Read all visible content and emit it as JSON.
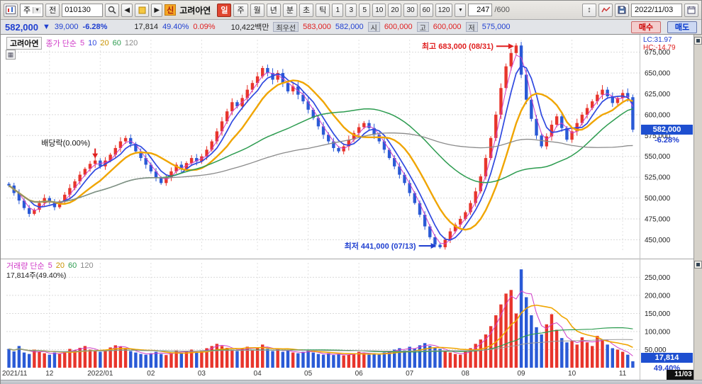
{
  "icons": {
    "dropdown": "▼",
    "prev": "◀",
    "next": "▶",
    "updown": "↕",
    "grid": "▦"
  },
  "toolbar": {
    "chart_type": "주",
    "jeon_label": "전",
    "code": "010130",
    "new_badge": "신",
    "stock_name": "고려아연",
    "period_active": "일",
    "periods": [
      "주",
      "월",
      "년",
      "분",
      "초",
      "틱"
    ],
    "intervals": [
      "1",
      "3",
      "5",
      "10",
      "20",
      "30",
      "60",
      "120"
    ],
    "bar_count": "247",
    "bar_max": "/600",
    "date": "2022/11/03"
  },
  "quote": {
    "price": "582,000",
    "change_arrow": "▼",
    "change": "39,000",
    "change_pct": "-6.28%",
    "volume": "17,814",
    "volume_ratio": "49.40%",
    "turnover": "0.09%",
    "value": "10,422백만",
    "best_label": "최우선",
    "best_ask": "583,000",
    "best_bid": "582,000",
    "open_label": "시",
    "open": "600,000",
    "high_label": "고",
    "high": "600,000",
    "low_label": "저",
    "low": "575,000",
    "buy_label": "매수",
    "sell_label": "매도"
  },
  "price_pane": {
    "name": "고려아연",
    "legend_prefix": "종가 단순",
    "ma_labels": [
      "5",
      "10",
      "20",
      "60",
      "120"
    ],
    "lc": "LC:31.97",
    "hc": "HC:-14.79",
    "current_price": "582,000",
    "current_pct": "-6.28%"
  },
  "volume_pane": {
    "legend_prefix": "거래량 단순",
    "ma_labels": [
      "5",
      "20",
      "60",
      "120"
    ],
    "current_text": "17,814주(49.40%)",
    "current_vol": "17,814",
    "current_pct": "49.40%"
  },
  "colors": {
    "up": "#e8352c",
    "down": "#2a5ad6",
    "red_text": "#e02020",
    "blue_text": "#1f3fd0"
  },
  "chart_data": {
    "type": "candlestick+volume",
    "title": "고려아연(010130) 일봉차트",
    "periodicity": "일",
    "current_date_label": "11/03",
    "price_range": [
      435000,
      690000
    ],
    "volume_range": [
      0,
      290000
    ],
    "price_axis_ticks": [
      450000,
      475000,
      500000,
      525000,
      550000,
      575000,
      600000,
      625000,
      650000,
      675000
    ],
    "volume_axis_ticks": [
      50000,
      100000,
      150000,
      200000,
      250000
    ],
    "months": [
      {
        "i": 0,
        "label": "2021/11"
      },
      {
        "i": 8,
        "label": "12"
      },
      {
        "i": 18,
        "label": "2022/01"
      },
      {
        "i": 28,
        "label": "02"
      },
      {
        "i": 38,
        "label": "03"
      },
      {
        "i": 49,
        "label": "04"
      },
      {
        "i": 59,
        "label": "05"
      },
      {
        "i": 69,
        "label": "06"
      },
      {
        "i": 79,
        "label": "07"
      },
      {
        "i": 90,
        "label": "08"
      },
      {
        "i": 101,
        "label": "09"
      },
      {
        "i": 111,
        "label": "10"
      },
      {
        "i": 121,
        "label": "11"
      }
    ],
    "closes": [
      515000,
      506000,
      497000,
      488000,
      481000,
      486000,
      494000,
      500000,
      495000,
      489000,
      496000,
      504000,
      512000,
      520000,
      528000,
      535000,
      541000,
      545000,
      538000,
      545000,
      552000,
      560000,
      568000,
      572000,
      565000,
      556000,
      548000,
      540000,
      532000,
      524000,
      518000,
      525000,
      532000,
      540000,
      535000,
      542000,
      548000,
      544000,
      550000,
      558000,
      568000,
      580000,
      592000,
      604000,
      615000,
      610000,
      620000,
      630000,
      638000,
      646000,
      656000,
      650000,
      642000,
      650000,
      638000,
      628000,
      634000,
      624000,
      616000,
      606000,
      596000,
      586000,
      576000,
      568000,
      560000,
      556000,
      562000,
      570000,
      578000,
      585000,
      590000,
      584000,
      576000,
      568000,
      558000,
      548000,
      538000,
      528000,
      518000,
      506000,
      494000,
      480000,
      466000,
      453000,
      444000,
      441000,
      450000,
      460000,
      468000,
      475000,
      483000,
      494000,
      508000,
      526000,
      548000,
      572000,
      600000,
      632000,
      658000,
      674000,
      683000,
      648000,
      618000,
      595000,
      575000,
      562000,
      574000,
      588000,
      598000,
      584000,
      570000,
      580000,
      590000,
      600000,
      608000,
      616000,
      624000,
      630000,
      622000,
      614000,
      620000,
      626000,
      621000,
      582000
    ],
    "volumes": [
      52000,
      45000,
      60000,
      42000,
      38000,
      50000,
      44000,
      40000,
      36000,
      42000,
      38000,
      45000,
      52000,
      48000,
      55000,
      60000,
      50000,
      46000,
      44000,
      50000,
      56000,
      62000,
      58000,
      52000,
      46000,
      42000,
      38000,
      36000,
      40000,
      44000,
      38000,
      35000,
      42000,
      48000,
      40000,
      45000,
      50000,
      42000,
      48000,
      54000,
      60000,
      66000,
      60000,
      55000,
      50000,
      46000,
      52000,
      58000,
      50000,
      56000,
      64000,
      52000,
      46000,
      52000,
      44000,
      48000,
      42000,
      40000,
      44000,
      48000,
      42000,
      38000,
      36000,
      40000,
      35000,
      38000,
      34000,
      36000,
      40000,
      44000,
      40000,
      36000,
      40000,
      36000,
      42000,
      46000,
      50000,
      54000,
      48000,
      58000,
      52000,
      62000,
      68000,
      60000,
      56000,
      52000,
      46000,
      42000,
      38000,
      36000,
      44000,
      54000,
      66000,
      78000,
      92000,
      115000,
      145000,
      175000,
      205000,
      215000,
      150000,
      272000,
      195000,
      145000,
      112000,
      92000,
      120000,
      148000,
      105000,
      82000,
      70000,
      74000,
      64000,
      84000,
      70000,
      60000,
      88000,
      78000,
      64000,
      54000,
      50000,
      44000,
      36000,
      17814
    ],
    "price_ma": [
      {
        "label": "5",
        "window": 3,
        "color": "#d03cc8",
        "width": 1
      },
      {
        "label": "10",
        "window": 5,
        "color": "#2f49e0",
        "width": 1.7
      },
      {
        "label": "20",
        "window": 10,
        "color": "#f0a500",
        "width": 2.4
      },
      {
        "label": "60",
        "window": 30,
        "color": "#2d9c50",
        "width": 1.5
      },
      {
        "label": "120",
        "window": 60,
        "color": "#8a8a8a",
        "width": 1.3
      }
    ],
    "volume_ma": [
      {
        "label": "5",
        "window": 3,
        "color": "#d03cc8",
        "width": 1
      },
      {
        "label": "20",
        "window": 10,
        "color": "#f0a500",
        "width": 1.6
      },
      {
        "label": "60",
        "window": 30,
        "color": "#2d9c50",
        "width": 1.2
      },
      {
        "label": "120",
        "window": 60,
        "color": "#999999",
        "width": 1
      }
    ],
    "annotations": {
      "high": {
        "index": 100,
        "price": 683000,
        "label": "최고 683,000 (08/31)"
      },
      "low": {
        "index": 85,
        "price": 441000,
        "label": "최저 441,000 (07/13)"
      },
      "ex_dividend": {
        "index": 17,
        "price": 545000,
        "label": "배당락(0.00%)"
      }
    }
  }
}
